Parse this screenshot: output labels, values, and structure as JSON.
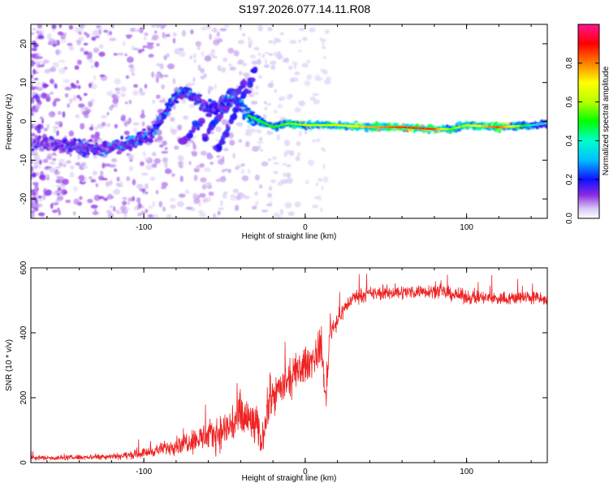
{
  "page_title": "S197.2026.077.14.11.R08",
  "chart_data": [
    {
      "type": "heatmap",
      "name": "spectrogram",
      "title": "S197.2026.077.14.11.R08",
      "xlabel": "Height of straight line (km)",
      "ylabel": "Frequency (Hz)",
      "xlim": [
        -170,
        150
      ],
      "ylim": [
        -25,
        25
      ],
      "x_ticks": [
        -100,
        0,
        100
      ],
      "x_tick_labels": [
        "-100",
        "0",
        "100"
      ],
      "y_ticks": [
        -20,
        -10,
        0,
        10,
        20
      ],
      "y_tick_labels": [
        "-20",
        "-10",
        "0",
        "10",
        "20"
      ],
      "grid": false,
      "colorbar": {
        "label": "Normalized spectral amplitude",
        "range": [
          0,
          1
        ],
        "ticks": [
          0,
          0.2,
          0.4,
          0.6,
          0.8
        ],
        "tick_labels": [
          "0.0",
          "0.2",
          "0.4",
          "0.6",
          "0.8"
        ],
        "colormap": "rainbow"
      },
      "ridge": [
        {
          "x": -170,
          "f": -5.5,
          "amp": 0.22
        },
        {
          "x": -150,
          "f": -6.0,
          "amp": 0.25
        },
        {
          "x": -130,
          "f": -7.0,
          "amp": 0.28
        },
        {
          "x": -110,
          "f": -6.0,
          "amp": 0.3
        },
        {
          "x": -95,
          "f": -3.0,
          "amp": 0.32
        },
        {
          "x": -85,
          "f": 4.0,
          "amp": 0.35
        },
        {
          "x": -75,
          "f": 8.0,
          "amp": 0.35
        },
        {
          "x": -60,
          "f": 3.0,
          "amp": 0.3
        },
        {
          "x": -45,
          "f": 6.0,
          "amp": 0.35
        },
        {
          "x": -35,
          "f": 1.5,
          "amp": 0.45
        },
        {
          "x": -20,
          "f": -1.5,
          "amp": 0.5
        },
        {
          "x": -10,
          "f": -0.5,
          "amp": 0.55
        },
        {
          "x": 0,
          "f": -1.0,
          "amp": 0.6
        },
        {
          "x": 20,
          "f": -1.0,
          "amp": 0.65
        },
        {
          "x": 40,
          "f": -1.5,
          "amp": 0.75
        },
        {
          "x": 60,
          "f": -1.5,
          "amp": 0.85
        },
        {
          "x": 80,
          "f": -2.0,
          "amp": 0.85
        },
        {
          "x": 90,
          "f": -2.0,
          "amp": 0.55
        },
        {
          "x": 100,
          "f": -1.0,
          "amp": 0.6
        },
        {
          "x": 120,
          "f": -1.5,
          "amp": 0.85
        },
        {
          "x": 140,
          "f": -1.0,
          "amp": 0.4
        },
        {
          "x": 150,
          "f": -0.5,
          "amp": 0.3
        }
      ]
    },
    {
      "type": "line",
      "name": "snr-plot",
      "xlabel": "Height of straight line (km)",
      "ylabel": "SNR (10 * v/v)",
      "xlim": [
        -170,
        150
      ],
      "ylim": [
        0,
        600
      ],
      "x_ticks": [
        -100,
        0,
        100
      ],
      "x_tick_labels": [
        "-100",
        "0",
        "100"
      ],
      "y_ticks": [
        0,
        200,
        400,
        600
      ],
      "y_tick_labels": [
        "0",
        "200",
        "400",
        "600"
      ],
      "grid": false,
      "series": [
        {
          "name": "SNR",
          "color": "#ee2222",
          "x": [
            -170,
            -150,
            -130,
            -110,
            -100,
            -90,
            -80,
            -70,
            -60,
            -50,
            -45,
            -40,
            -35,
            -30,
            -27,
            -24,
            -20,
            -15,
            -10,
            -5,
            0,
            5,
            10,
            13,
            15,
            20,
            25,
            30,
            40,
            60,
            80,
            90,
            100,
            120,
            140,
            150
          ],
          "mean": [
            15,
            15,
            18,
            22,
            30,
            40,
            55,
            70,
            80,
            100,
            120,
            140,
            130,
            110,
            60,
            150,
            210,
            230,
            250,
            280,
            300,
            320,
            360,
            180,
            400,
            440,
            480,
            510,
            520,
            525,
            530,
            520,
            510,
            505,
            510,
            500
          ],
          "noise": [
            8,
            8,
            9,
            12,
            15,
            20,
            30,
            40,
            50,
            60,
            80,
            90,
            80,
            70,
            40,
            70,
            60,
            60,
            60,
            60,
            60,
            55,
            60,
            40,
            40,
            30,
            25,
            22,
            22,
            22,
            22,
            22,
            22,
            22,
            22,
            22
          ]
        }
      ]
    }
  ]
}
